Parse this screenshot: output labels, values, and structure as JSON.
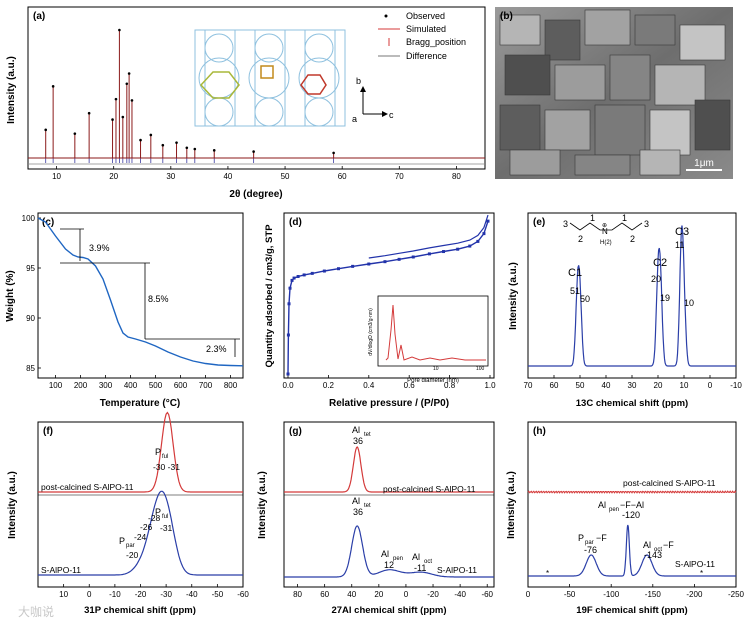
{
  "chart_data": [
    {
      "panel": "(a)",
      "type": "line",
      "xlabel": "2θ (degree)",
      "ylabel": "Intensity (a.u.)",
      "xlim": [
        5,
        85
      ],
      "xticks": [
        "10",
        "20",
        "30",
        "40",
        "50",
        "60",
        "70",
        "80"
      ],
      "legend": [
        "Observed",
        "Simulated",
        "Bragg_position",
        "Difference"
      ],
      "peaks": [
        {
          "x": 8.1,
          "y": 0.22
        },
        {
          "x": 9.4,
          "y": 0.56
        },
        {
          "x": 13.2,
          "y": 0.19
        },
        {
          "x": 15.7,
          "y": 0.35
        },
        {
          "x": 19.8,
          "y": 0.3
        },
        {
          "x": 20.4,
          "y": 0.46
        },
        {
          "x": 21.0,
          "y": 1.0
        },
        {
          "x": 21.6,
          "y": 0.32
        },
        {
          "x": 22.3,
          "y": 0.58
        },
        {
          "x": 22.7,
          "y": 0.66
        },
        {
          "x": 23.2,
          "y": 0.45
        },
        {
          "x": 24.7,
          "y": 0.14
        },
        {
          "x": 26.5,
          "y": 0.18
        },
        {
          "x": 28.6,
          "y": 0.1
        },
        {
          "x": 31.0,
          "y": 0.12
        },
        {
          "x": 32.8,
          "y": 0.08
        },
        {
          "x": 34.2,
          "y": 0.07
        },
        {
          "x": 37.6,
          "y": 0.06
        },
        {
          "x": 44.5,
          "y": 0.05
        },
        {
          "x": 58.5,
          "y": 0.04
        }
      ],
      "axis_labels": {
        "b": "b",
        "a": "a",
        "c": "c"
      }
    },
    {
      "panel": "(c)",
      "type": "line",
      "xlabel": "Temperature (°C)",
      "ylabel": "Weight (%)",
      "xlim": [
        30,
        850
      ],
      "ylim": [
        84,
        100.5
      ],
      "xticks": [
        "100",
        "200",
        "300",
        "400",
        "500",
        "600",
        "700",
        "800"
      ],
      "yticks": [
        "85",
        "90",
        "95",
        "100"
      ],
      "x": [
        30,
        60,
        100,
        140,
        170,
        190,
        210,
        230,
        260,
        290,
        320,
        350,
        370,
        390,
        420,
        460,
        500,
        550,
        600,
        650,
        700,
        750,
        800,
        850
      ],
      "y": [
        100.0,
        99.6,
        98.2,
        96.9,
        96.3,
        96.1,
        96.05,
        95.9,
        95.2,
        93.9,
        91.8,
        89.6,
        88.5,
        88.1,
        87.9,
        87.6,
        87.2,
        86.6,
        86.1,
        85.7,
        85.45,
        85.3,
        85.25,
        85.22
      ],
      "annotations": [
        "3.9%",
        "8.5%",
        "2.3%"
      ]
    },
    {
      "panel": "(d)",
      "type": "line",
      "xlabel": "Relative pressure / (P/P0)",
      "ylabel": "Quantity adsorbed / cm3/g, STP",
      "xlim": [
        0,
        1.0
      ],
      "xticks": [
        "0.0",
        "0.2",
        "0.4",
        "0.6",
        "0.8",
        "1.0"
      ],
      "x": [
        0.0,
        0.002,
        0.005,
        0.01,
        0.02,
        0.03,
        0.05,
        0.08,
        0.12,
        0.18,
        0.25,
        0.32,
        0.4,
        0.48,
        0.55,
        0.62,
        0.7,
        0.77,
        0.84,
        0.9,
        0.94,
        0.97,
        0.99
      ],
      "y": [
        0.0,
        0.25,
        0.45,
        0.55,
        0.6,
        0.615,
        0.625,
        0.635,
        0.645,
        0.66,
        0.675,
        0.69,
        0.705,
        0.72,
        0.735,
        0.75,
        0.77,
        0.785,
        0.8,
        0.82,
        0.85,
        0.9,
        0.98
      ],
      "inset": {
        "xlabel": "Pore diameter (nm)",
        "ylabel": "dV/dlogD (cm3/g·nm)",
        "xticks": [
          "10",
          "100"
        ],
        "yticks": [
          "0.0",
          "0.1",
          "0.2",
          "0.3",
          "0.4"
        ]
      }
    },
    {
      "panel": "(e)",
      "type": "line",
      "xlabel": "13C chemical shift (ppm)",
      "ylabel": "Intensity (a.u.)",
      "xlim": [
        70,
        -10
      ],
      "xticks": [
        "70",
        "60",
        "50",
        "40",
        "30",
        "20",
        "10",
        "0",
        "-10"
      ],
      "peaks": [
        {
          "x": 51,
          "y": 0.52
        },
        {
          "x": 50,
          "y": 0.48
        },
        {
          "x": 20,
          "y": 0.62
        },
        {
          "x": 19,
          "y": 0.55
        },
        {
          "x": 11,
          "y": 0.9
        },
        {
          "x": 10,
          "y": 0.42
        }
      ],
      "labels": [
        "C1",
        "51",
        "50",
        "C2",
        "20",
        "19",
        "C3",
        "11",
        "10"
      ],
      "structure": {
        "n1": "3",
        "n2": "1",
        "n3": "1",
        "n4": "3",
        "n5": "2",
        "n6": "2",
        "atom": "N",
        "h": "H(2)",
        "plus": "⊕"
      }
    },
    {
      "panel": "(f)",
      "type": "line",
      "xlabel": "31P chemical shift (ppm)",
      "ylabel": "Intensity (a.u.)",
      "xlim": [
        20,
        -60
      ],
      "xticks": [
        "10",
        "0",
        "-10",
        "-20",
        "-30",
        "-40",
        "-50",
        "-60"
      ],
      "series": [
        {
          "name": "post-calcined S-AlPO-11",
          "peaks": [
            {
              "x": -30,
              "y": 0.9
            },
            {
              "x": -31,
              "y": 0.8
            }
          ]
        },
        {
          "name": "S-AlPO-11",
          "peaks": [
            {
              "x": -20,
              "y": 0.15
            },
            {
              "x": -24,
              "y": 0.3
            },
            {
              "x": -26,
              "y": 0.45
            },
            {
              "x": -28,
              "y": 0.7
            },
            {
              "x": -31,
              "y": 0.8
            }
          ]
        }
      ],
      "labels": {
        "pful": "P",
        "pful_sub": "ful",
        "pful_vals": "-30  -31",
        "ppar": "P",
        "ppar_sub": "par",
        "ppar_vals": "-24",
        "ppar_vals2": "-26",
        "ppar_vals3": "-20",
        "pful2_vals": "-28",
        "pful2_vals2": "-31"
      }
    },
    {
      "panel": "(g)",
      "type": "line",
      "xlabel": "27Al chemical shift (ppm)",
      "ylabel": "Intensity (a.u.)",
      "xlim": [
        90,
        -65
      ],
      "xticks": [
        "80",
        "60",
        "40",
        "20",
        "0",
        "-20",
        "-40",
        "-60"
      ],
      "series": [
        {
          "name": "post-calcined S-AlPO-11",
          "peaks": [
            {
              "x": 36,
              "y": 0.9
            }
          ]
        },
        {
          "name": "S-AlPO-11",
          "peaks": [
            {
              "x": 36,
              "y": 0.85
            },
            {
              "x": 12,
              "y": 0.12
            },
            {
              "x": -11,
              "y": 0.08
            }
          ]
        }
      ],
      "labels": {
        "al": "Al",
        "tet": "tet",
        "v36": "36",
        "pen": "pen",
        "v12": "12",
        "oct": "oct",
        "v11": "-11"
      }
    },
    {
      "panel": "(h)",
      "type": "line",
      "xlabel": "19F chemical shift (ppm)",
      "ylabel": "Intensity (a.u.)",
      "xlim": [
        0,
        -250
      ],
      "xticks": [
        "0",
        "-50",
        "-100",
        "-150",
        "-200",
        "-250"
      ],
      "series": [
        {
          "name": "post-calcined S-AlPO-11",
          "peaks": []
        },
        {
          "name": "S-AlPO-11",
          "peaks": [
            {
              "x": -76,
              "y": 0.35
            },
            {
              "x": -120,
              "y": 0.85
            },
            {
              "x": -143,
              "y": 0.35
            }
          ]
        }
      ],
      "labels": {
        "pparf": "P",
        "par": "par",
        "pf": "−F",
        "v76": "-76",
        "alpen": "Al",
        "pen": "pen",
        "f": "−F−Al",
        "v120": "-120",
        "aloct": "Al",
        "oct": "oct",
        "v143": "-143",
        "star": "*"
      }
    }
  ],
  "panel_labels": {
    "a": "(a)",
    "b": "(b)",
    "c": "(c)",
    "d": "(d)",
    "e": "(e)",
    "f": "(f)",
    "g": "(g)",
    "h": "(h)"
  },
  "sem": {
    "scale": "1μm"
  },
  "watermark": "大咖说"
}
